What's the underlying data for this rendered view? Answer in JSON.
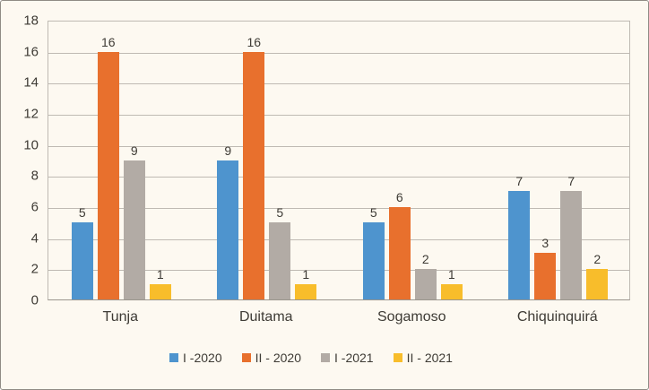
{
  "chart_data": {
    "type": "bar",
    "title": "",
    "xlabel": "",
    "ylabel": "",
    "categories": [
      "Tunja",
      "Duitama",
      "Sogamoso",
      "Chiquinquirá"
    ],
    "series": [
      {
        "name": "I -2020",
        "color": "#4E94CE",
        "values": [
          5,
          9,
          5,
          7
        ]
      },
      {
        "name": "II - 2020",
        "color": "#E8702D",
        "values": [
          16,
          16,
          6,
          3
        ]
      },
      {
        "name": "I -2021",
        "color": "#B2ABA5",
        "values": [
          9,
          5,
          2,
          7
        ]
      },
      {
        "name": "II - 2021",
        "color": "#F8BD2B",
        "values": [
          1,
          1,
          1,
          2
        ]
      }
    ],
    "ylim": [
      0,
      18
    ],
    "yticks": [
      0,
      2,
      4,
      6,
      8,
      10,
      12,
      14,
      16,
      18
    ],
    "grid": true,
    "data_labels": true,
    "legend_position": "bottom"
  },
  "colors": {
    "background": "#FDF9F1",
    "frame_border": "#8F8B84",
    "gridline": "#BFBAB3",
    "axis_line": "#9A958D",
    "text": "#3E3B35"
  }
}
